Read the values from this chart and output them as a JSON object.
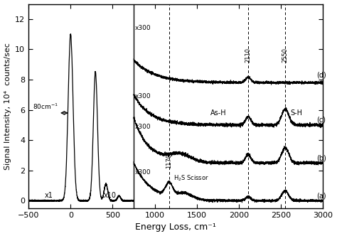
{
  "xlim": [
    -500,
    3000
  ],
  "ylim": [
    -0.5,
    13
  ],
  "xlabel": "Energy Loss, cm⁻¹",
  "ylabel": "Signal Intensity, 10⁴  counts/sec",
  "yticks": [
    0,
    2,
    4,
    6,
    8,
    10,
    12
  ],
  "xticks": [
    -500,
    0,
    500,
    1000,
    1500,
    2000,
    2500,
    3000
  ],
  "background_color": "#ffffff",
  "line_color": "#000000",
  "vline_positions": [
    1170,
    2110,
    2550
  ],
  "offsets": {
    "a": 0.0,
    "b": 2.5,
    "c": 5.0,
    "d": 7.8
  },
  "separator_x": 750,
  "noise_scale": 0.045
}
